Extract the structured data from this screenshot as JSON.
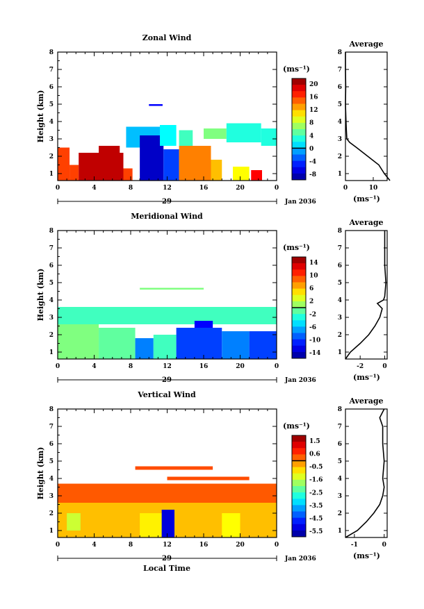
{
  "shared": {
    "height_label": "Height (km)",
    "date_label": "Jan 2036",
    "day_label": "29",
    "x_ticks": [
      "0",
      "4",
      "8",
      "12",
      "16",
      "20",
      "0"
    ],
    "y_ticks": [
      "1",
      "2",
      "3",
      "4",
      "5",
      "6",
      "7",
      "8"
    ],
    "unit_label": "(ms⁻¹)",
    "average_title": "Average",
    "footer_xlabel": "Local Time"
  },
  "panels": [
    {
      "title": "Zonal Wind",
      "colorbar_ticks": [
        "20",
        "16",
        "12",
        "8",
        "4",
        "0",
        "-4",
        "-8"
      ],
      "avg_xticks": [
        "0",
        "10"
      ]
    },
    {
      "title": "Meridional Wind",
      "colorbar_ticks": [
        "14",
        "10",
        "6",
        "2",
        "-2",
        "-6",
        "-10",
        "-14"
      ],
      "avg_xticks": [
        "-2",
        "0"
      ]
    },
    {
      "title": "Vertical Wind",
      "colorbar_ticks": [
        "1.5",
        "0.6",
        "-0.5",
        "-1.6",
        "-2.5",
        "-3.5",
        "-4.5",
        "-5.5"
      ],
      "avg_xticks": [
        "-1",
        "0"
      ]
    }
  ],
  "chart_data": [
    {
      "type": "heatmap",
      "title": "Zonal Wind",
      "ylabel": "Height (km)",
      "xlim": [
        0,
        24
      ],
      "ylim": [
        0.6,
        8.0
      ],
      "cbar_range": [
        -10,
        22
      ],
      "regions": [
        {
          "t": [
            0,
            1.3
          ],
          "h": [
            0.6,
            2.5
          ],
          "v": 16
        },
        {
          "t": [
            1.3,
            2.3
          ],
          "h": [
            0.6,
            1.5
          ],
          "v": 16
        },
        {
          "t": [
            2.3,
            7.2
          ],
          "h": [
            0.6,
            2.2
          ],
          "v": 20
        },
        {
          "t": [
            4.5,
            6.8
          ],
          "h": [
            1.5,
            2.6
          ],
          "v": 20
        },
        {
          "t": [
            7.2,
            8.2
          ],
          "h": [
            0.6,
            1.3
          ],
          "v": 16
        },
        {
          "t": [
            7.5,
            11.2
          ],
          "h": [
            2.5,
            3.7
          ],
          "v": 0
        },
        {
          "t": [
            9.0,
            11.6
          ],
          "h": [
            0.6,
            3.2
          ],
          "v": -8
        },
        {
          "t": [
            11.2,
            13.0
          ],
          "h": [
            2.6,
            3.8
          ],
          "v": 2
        },
        {
          "t": [
            11.6,
            13.3
          ],
          "h": [
            0.6,
            2.4
          ],
          "v": -4
        },
        {
          "t": [
            13.3,
            14.8
          ],
          "h": [
            2.6,
            3.5
          ],
          "v": 4
        },
        {
          "t": [
            13.3,
            16.8
          ],
          "h": [
            0.6,
            2.6
          ],
          "v": 14
        },
        {
          "t": [
            16.8,
            18.0
          ],
          "h": [
            0.6,
            1.8
          ],
          "v": 12
        },
        {
          "t": [
            16.0,
            18.5
          ],
          "h": [
            3.0,
            3.6
          ],
          "v": 6
        },
        {
          "t": [
            18.5,
            22.3
          ],
          "h": [
            2.8,
            3.9
          ],
          "v": 3
        },
        {
          "t": [
            19.2,
            21.0
          ],
          "h": [
            0.6,
            1.4
          ],
          "v": 10
        },
        {
          "t": [
            21.2,
            22.4
          ],
          "h": [
            0.6,
            1.2
          ],
          "v": 18
        },
        {
          "t": [
            22.3,
            24.0
          ],
          "h": [
            2.6,
            3.6
          ],
          "v": 3
        },
        {
          "t": [
            10.0,
            11.5
          ],
          "h": [
            4.9,
            5.0
          ],
          "v": -6
        }
      ],
      "average_profile": {
        "h": [
          0.6,
          1.0,
          1.5,
          2.0,
          2.5,
          2.8,
          3.0,
          3.3,
          3.6,
          4.0,
          4.5,
          5.0,
          6.0,
          7.0,
          8.0
        ],
        "v": [
          16,
          14,
          12,
          8,
          4,
          1.5,
          0.5,
          0.4,
          0.3,
          0.2,
          0.1,
          0.0,
          0.1,
          0.0,
          0.0
        ],
        "xlim": [
          0,
          15
        ]
      }
    },
    {
      "type": "heatmap",
      "title": "Meridional Wind",
      "ylabel": "Height (km)",
      "xlim": [
        0,
        24
      ],
      "ylim": [
        0.6,
        8.0
      ],
      "cbar_range": [
        -16,
        16
      ],
      "regions": [
        {
          "t": [
            0,
            4.5
          ],
          "h": [
            0.6,
            2.6
          ],
          "v": 0
        },
        {
          "t": [
            0,
            24
          ],
          "h": [
            2.6,
            3.6
          ],
          "v": -2
        },
        {
          "t": [
            4.5,
            8.5
          ],
          "h": [
            0.6,
            2.4
          ],
          "v": -1
        },
        {
          "t": [
            8.5,
            10.5
          ],
          "h": [
            0.6,
            1.8
          ],
          "v": -8
        },
        {
          "t": [
            10.5,
            13.0
          ],
          "h": [
            0.6,
            2.0
          ],
          "v": -2
        },
        {
          "t": [
            13.0,
            18.0
          ],
          "h": [
            0.6,
            2.4
          ],
          "v": -10
        },
        {
          "t": [
            15.0,
            17.0
          ],
          "h": [
            2.4,
            2.8
          ],
          "v": -12
        },
        {
          "t": [
            18.0,
            21.0
          ],
          "h": [
            0.6,
            2.2
          ],
          "v": -8
        },
        {
          "t": [
            21.0,
            24.0
          ],
          "h": [
            0.6,
            2.2
          ],
          "v": -10
        },
        {
          "t": [
            9.0,
            16.0
          ],
          "h": [
            4.6,
            4.7
          ],
          "v": 0
        }
      ],
      "average_profile": {
        "h": [
          0.6,
          1.0,
          1.5,
          2.0,
          2.5,
          3.0,
          3.5,
          3.8,
          4.0,
          4.2,
          5.0,
          6.0,
          7.0,
          8.0
        ],
        "v": [
          -3.2,
          -2.8,
          -2.0,
          -1.3,
          -0.8,
          -0.4,
          -0.2,
          -0.6,
          -0.1,
          0.0,
          0.1,
          0.0,
          0.0,
          0.0
        ],
        "xlim": [
          -3.2,
          0.2
        ]
      }
    },
    {
      "type": "heatmap",
      "title": "Vertical Wind",
      "ylabel": "Height (km)",
      "xlabel": "Local Time",
      "xlim": [
        0,
        24
      ],
      "ylim": [
        0.6,
        8.0
      ],
      "cbar_range": [
        -6.0,
        2.0
      ],
      "regions": [
        {
          "t": [
            0,
            24
          ],
          "h": [
            2.6,
            3.7
          ],
          "v": 0.3
        },
        {
          "t": [
            0,
            24
          ],
          "h": [
            0.6,
            2.6
          ],
          "v": -0.5
        },
        {
          "t": [
            1.0,
            2.5
          ],
          "h": [
            1.0,
            2.0
          ],
          "v": -1.4
        },
        {
          "t": [
            9.0,
            11.5
          ],
          "h": [
            0.6,
            2.0
          ],
          "v": -0.9
        },
        {
          "t": [
            11.4,
            12.8
          ],
          "h": [
            0.6,
            2.2
          ],
          "v": -5.3
        },
        {
          "t": [
            18.0,
            20.0
          ],
          "h": [
            0.6,
            2.0
          ],
          "v": -1.0
        },
        {
          "t": [
            8.5,
            17.0
          ],
          "h": [
            4.5,
            4.7
          ],
          "v": 0.4
        },
        {
          "t": [
            12.0,
            21.0
          ],
          "h": [
            3.9,
            4.1
          ],
          "v": 0.4
        }
      ],
      "average_profile": {
        "h": [
          0.6,
          1.0,
          1.5,
          2.0,
          2.5,
          3.0,
          3.5,
          4.0,
          5.0,
          6.0,
          7.0,
          7.5,
          8.0
        ],
        "v": [
          -1.3,
          -0.9,
          -0.6,
          -0.35,
          -0.15,
          -0.05,
          0.0,
          -0.05,
          0.0,
          -0.05,
          -0.05,
          -0.15,
          0.0
        ],
        "xlim": [
          -1.3,
          0.1
        ]
      }
    }
  ]
}
